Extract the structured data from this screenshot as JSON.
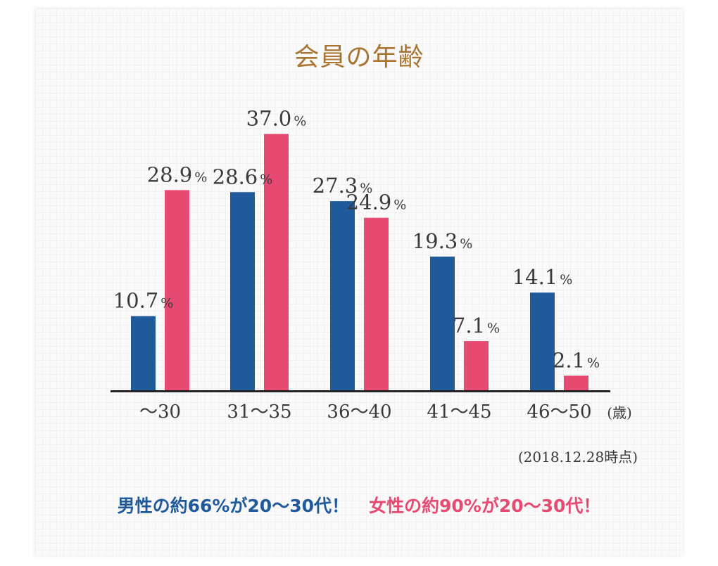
{
  "title": "会員の年齢",
  "as_of": "(2018.12.28時点)",
  "footer": {
    "male": "男性の約66%が20〜30代！",
    "female": "女性の約90%が20〜30代！"
  },
  "colors": {
    "male": "#215a9b",
    "female": "#e64a71",
    "title": "#a9742f"
  },
  "chart_data": {
    "type": "bar",
    "title": "会員の年齢",
    "categories": [
      "〜30",
      "31〜35",
      "36〜40",
      "41〜45",
      "46〜50"
    ],
    "unit": "(歳)",
    "value_suffix": "%",
    "series": [
      {
        "name": "男性",
        "color": "#215a9b",
        "values": [
          10.7,
          28.6,
          27.3,
          19.3,
          14.1
        ]
      },
      {
        "name": "女性",
        "color": "#e64a71",
        "values": [
          28.9,
          37.0,
          24.9,
          7.1,
          2.1
        ]
      }
    ],
    "ylim": [
      0,
      40
    ],
    "grid": false,
    "legend": "none"
  }
}
